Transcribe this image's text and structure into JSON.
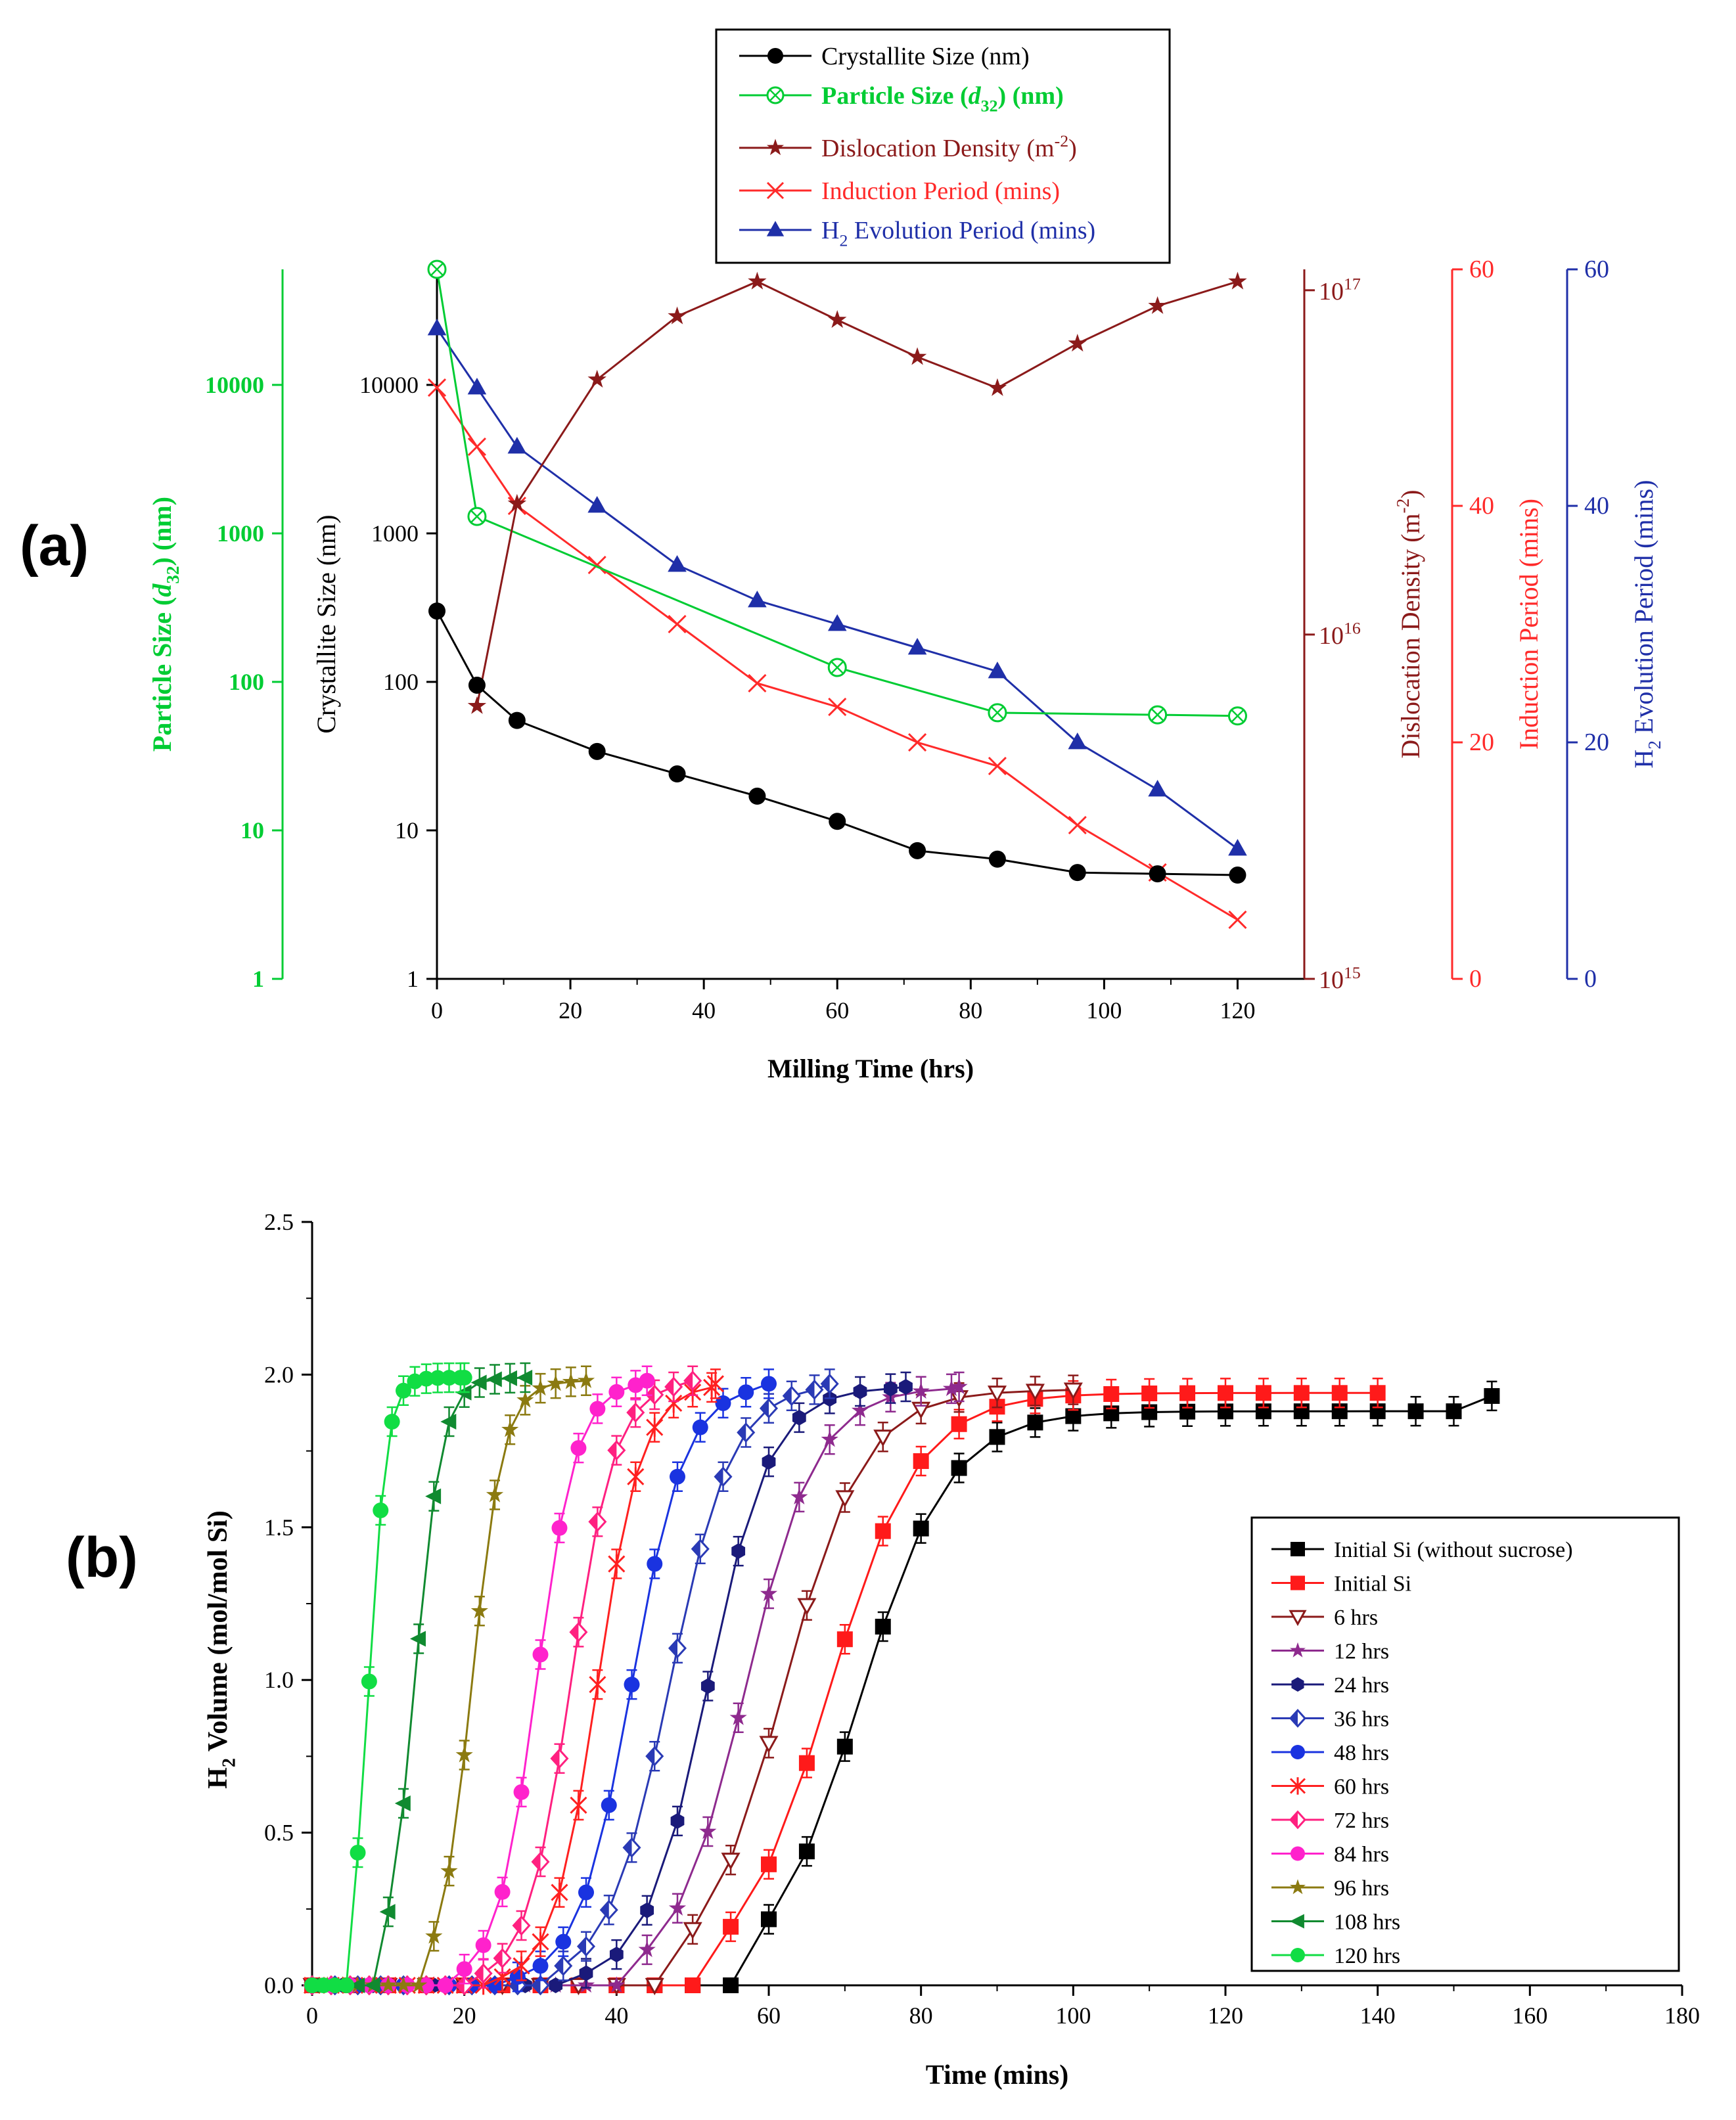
{
  "panel_a_label": "(a)",
  "panel_b_label": "(b)",
  "chart_data": [
    {
      "id": "a",
      "type": "line",
      "title": "",
      "xlabel": "Milling Time (hrs)",
      "xlim": [
        0,
        130
      ],
      "xticks": [
        0,
        20,
        40,
        60,
        80,
        100,
        120
      ],
      "axes": {
        "particle": {
          "label_main": "Particle Size (",
          "label_sym": "d",
          "label_sub": "32",
          "label_end": ") (nm)",
          "scale": "log",
          "range": [
            1,
            60000
          ],
          "ticks": [
            1,
            10,
            100,
            1000,
            10000
          ],
          "color": "#00cc33"
        },
        "crystallite": {
          "label": "Crystallite Size (nm)",
          "scale": "log",
          "range": [
            1,
            60000
          ],
          "ticks": [
            1,
            10,
            100,
            1000,
            10000
          ],
          "color": "#000000"
        },
        "dislocation": {
          "label": "Dislocation Density (m",
          "label_sup": "-2",
          "label_end": ")",
          "scale": "log",
          "range": [
            1000000000000000.0,
            1.15e+17
          ],
          "ticks": [
            {
              "v": 1000000000000000.0,
              "base": "10",
              "exp": "15"
            },
            {
              "v": 1e+16,
              "base": "10",
              "exp": "16"
            },
            {
              "v": 1e+17,
              "base": "10",
              "exp": "17"
            }
          ],
          "color": "#8b1a1a"
        },
        "induction": {
          "label": "Induction Period (mins)",
          "scale": "linear",
          "range": [
            0,
            60
          ],
          "ticks": [
            0,
            20,
            40,
            60
          ],
          "color": "#ff2a2a"
        },
        "evolution": {
          "label_pre": "H",
          "label_sub": "2",
          "label_main": " Evolution Period (mins)",
          "scale": "linear",
          "range": [
            0,
            60
          ],
          "ticks": [
            0,
            20,
            40,
            60
          ],
          "color": "#1f2fa8"
        }
      },
      "series": [
        {
          "name": "Crystallite Size (nm)",
          "axis": "crystallite",
          "marker": "circle",
          "color": "#000000",
          "x": [
            0,
            6,
            12,
            24,
            36,
            48,
            60,
            72,
            84,
            96,
            108,
            120
          ],
          "values": [
            300,
            95,
            55,
            34,
            24,
            17,
            11.5,
            7.3,
            6.4,
            5.2,
            5.1,
            5.0
          ]
        },
        {
          "name_main": "Particle Size (",
          "name_sym": "d",
          "name_sub": "32",
          "name_end": ") (nm)",
          "name": "Particle Size (d32) (nm)",
          "axis": "particle",
          "marker": "circlex",
          "color": "#00cc33",
          "x": [
            0,
            6,
            60,
            84,
            108,
            120
          ],
          "values": [
            60000,
            1300,
            125,
            62,
            60,
            59
          ]
        },
        {
          "name_main": "Dislocation Density (m",
          "name_sup": "-2",
          "name_end": ")",
          "name": "Dislocation Density (m-2)",
          "axis": "dislocation",
          "marker": "star",
          "color": "#8b1a1a",
          "x": [
            6,
            12,
            24,
            36,
            48,
            60,
            72,
            84,
            96,
            108,
            120
          ],
          "values": [
            6200000000000000.0,
            2.4e+16,
            5.5e+16,
            8.4e+16,
            1.06e+17,
            8.2e+16,
            6.4e+16,
            5.2e+16,
            7e+16,
            9e+16,
            1.06e+17
          ]
        },
        {
          "name": "Induction Period (mins)",
          "axis": "induction",
          "marker": "x",
          "color": "#ff2a2a",
          "x": [
            0,
            6,
            12,
            24,
            36,
            48,
            60,
            72,
            84,
            96,
            108,
            120
          ],
          "values": [
            50,
            45,
            40,
            35,
            30,
            25,
            23,
            20,
            18,
            13,
            9,
            5
          ]
        },
        {
          "name_pre": "H",
          "name_sub": "2",
          "name_main": " Evolution Period (mins)",
          "name": "H2 Evolution Period (mins)",
          "axis": "evolution",
          "marker": "triangle",
          "color": "#1f2fa8",
          "x": [
            0,
            6,
            12,
            24,
            36,
            48,
            60,
            72,
            84,
            96,
            108,
            120
          ],
          "values": [
            55,
            50,
            45,
            40,
            35,
            32,
            30,
            28,
            26,
            20,
            16,
            11
          ]
        }
      ]
    },
    {
      "id": "b",
      "type": "line",
      "title": "",
      "xlabel": "Time (mins)",
      "ylabel_pre": "H",
      "ylabel_sub": "2",
      "ylabel_main": " Volume (mol/mol Si)",
      "xlim": [
        0,
        180
      ],
      "ylim": [
        0,
        2.5
      ],
      "xticks": [
        0,
        20,
        40,
        60,
        80,
        100,
        120,
        140,
        160,
        180
      ],
      "yticks": [
        "0.0",
        "0.5",
        "1.0",
        "1.5",
        "2.0",
        "2.5"
      ],
      "legend_position": "right",
      "series": [
        {
          "name": "Initial Si (without sucrose)",
          "marker": "square",
          "color": "#000000",
          "onset": 55,
          "t50": 72,
          "width": 10,
          "end": 155,
          "step": 5,
          "plateau": 1.88,
          "final": 1.93
        },
        {
          "name": "Initial Si",
          "marker": "square",
          "color": "#ff1a1a",
          "onset": 50,
          "t50": 68,
          "width": 10,
          "end": 140,
          "step": 5,
          "plateau": 1.94,
          "final": 1.94
        },
        {
          "name": "6 hrs",
          "marker": "tri-down-open",
          "color": "#8b1a1a",
          "onset": 45,
          "t50": 62,
          "width": 9,
          "end": 100,
          "step": 5,
          "plateau": 1.95,
          "final": 1.95
        },
        {
          "name": "12 hrs",
          "marker": "star",
          "color": "#8e2a8e",
          "onset": 40,
          "t50": 57,
          "width": 8,
          "end": 85,
          "step": 4,
          "plateau": 1.96,
          "final": 1.96
        },
        {
          "name": "24 hrs",
          "marker": "hexagon",
          "color": "#1a1a7a",
          "onset": 35,
          "t50": 52,
          "width": 7,
          "end": 78,
          "step": 4,
          "plateau": 1.96,
          "final": 1.96
        },
        {
          "name": "36 hrs",
          "marker": "diamond-half",
          "color": "#2a3ab5",
          "onset": 30,
          "t50": 47,
          "width": 7,
          "end": 68,
          "step": 3,
          "plateau": 1.97,
          "final": 1.97
        },
        {
          "name": "48 hrs",
          "marker": "circle",
          "color": "#1a33e0",
          "onset": 26,
          "t50": 42,
          "width": 6,
          "end": 60,
          "step": 3,
          "plateau": 1.97,
          "final": 1.97
        },
        {
          "name": "60 hrs",
          "marker": "asterisk",
          "color": "#ff2020",
          "onset": 24,
          "t50": 37.5,
          "width": 5,
          "end": 53,
          "step": 2.5,
          "plateau": 1.97,
          "final": 1.97
        },
        {
          "name": "72 hrs",
          "marker": "diamond-half",
          "color": "#ff2080",
          "onset": 21,
          "t50": 34,
          "width": 5,
          "end": 50,
          "step": 2.5,
          "plateau": 1.98,
          "final": 1.98
        },
        {
          "name": "84 hrs",
          "marker": "circle",
          "color": "#ff22cc",
          "onset": 18,
          "t50": 29.5,
          "width": 4.5,
          "end": 44,
          "step": 2.5,
          "plateau": 1.98,
          "final": 1.98
        },
        {
          "name": "96 hrs",
          "marker": "star",
          "color": "#8b7a10",
          "onset": 15,
          "t50": 21,
          "width": 3.5,
          "end": 36,
          "step": 2,
          "plateau": 1.98,
          "final": 1.98
        },
        {
          "name": "108 hrs",
          "marker": "tri-left",
          "color": "#108a30",
          "onset": 9,
          "t50": 13.5,
          "width": 3,
          "end": 28,
          "step": 2,
          "plateau": 1.99,
          "final": 1.99
        },
        {
          "name": "120 hrs",
          "marker": "circle",
          "color": "#11dd44",
          "onset": 5,
          "t50": 7.5,
          "width": 2,
          "end": 20,
          "step": 1.5,
          "plateau": 1.99,
          "final": 1.99
        }
      ]
    }
  ]
}
